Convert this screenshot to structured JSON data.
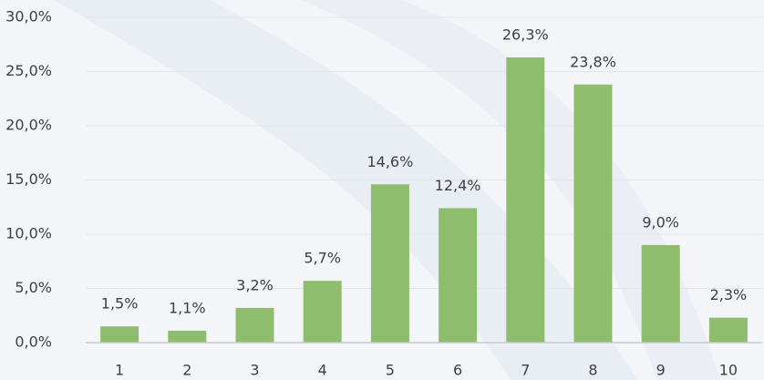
{
  "chart_data": {
    "type": "bar",
    "categories": [
      "1",
      "2",
      "3",
      "4",
      "5",
      "6",
      "7",
      "8",
      "9",
      "10"
    ],
    "values": [
      1.5,
      1.1,
      3.2,
      5.7,
      14.6,
      12.4,
      26.3,
      23.8,
      9.0,
      2.3
    ],
    "value_labels": [
      "1,5%",
      "1,1%",
      "3,2%",
      "5,7%",
      "14,6%",
      "12,4%",
      "26,3%",
      "23,8%",
      "9,0%",
      "2,3%"
    ],
    "color": "#8fbd6e",
    "ylim": [
      0,
      30
    ],
    "yticks": [
      {
        "value": 0,
        "label": "0,0%"
      },
      {
        "value": 5,
        "label": "5,0%"
      },
      {
        "value": 10,
        "label": "10,0%"
      },
      {
        "value": 15,
        "label": "15,0%"
      },
      {
        "value": 20,
        "label": "20,0%"
      },
      {
        "value": 25,
        "label": "25,0%"
      },
      {
        "value": 30,
        "label": "30,0%"
      }
    ],
    "grid": true
  }
}
